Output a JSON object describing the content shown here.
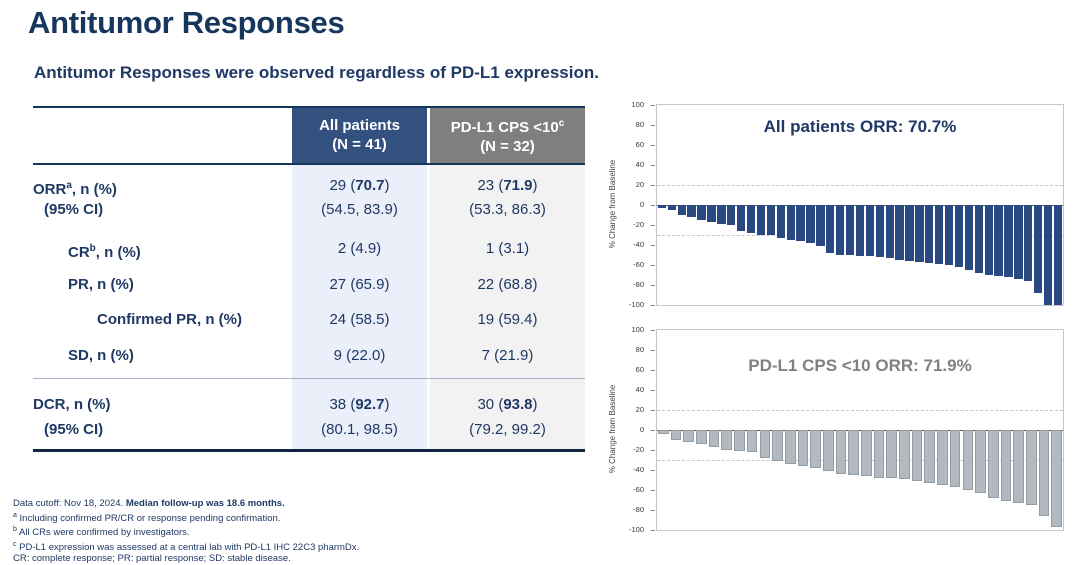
{
  "slide": {
    "title": "Antitumor Responses",
    "subtitle": "Antitumor Responses were observed regardless of PD-L1 expression."
  },
  "colors": {
    "text_navy": "#1F3864",
    "title_navy": "#17365D",
    "header_navy_bg": "#33517E",
    "header_gray_bg": "#7F7F7F",
    "column_blue_bg": "#EAEFF9",
    "column_gray_bg": "#F2F2F2",
    "bar_navy": "#2A4983",
    "bar_gray": "#B3B9C0",
    "chart_title_gray": "#808080"
  },
  "table": {
    "header": {
      "col1": {
        "line1": "All patients",
        "line2": "(N = 41)"
      },
      "col2": {
        "line1": "PD-L1 CPS <10",
        "sup": "c",
        "line2": "(N = 32)"
      }
    },
    "rows": [
      {
        "id": "orr",
        "label_pre": "ORR",
        "label_sup": "a",
        "label_post": ", n (%)",
        "sub_label": "(95% CI)",
        "cells": [
          {
            "pre": "29 (",
            "bold": "70.7",
            "post": ")",
            "sub": "(54.5, 83.9)"
          },
          {
            "pre": "23 (",
            "bold": "71.9",
            "post": ")",
            "sub": "(53.3, 86.3)"
          }
        ]
      },
      {
        "id": "cr",
        "label_pre": "CR",
        "label_sup": "b",
        "label_post": ", n (%)",
        "cells": [
          {
            "pre": "2 (4.9)"
          },
          {
            "pre": "1 (3.1)"
          }
        ]
      },
      {
        "id": "pr",
        "label_pre": "PR",
        "label_sup": "",
        "label_post": ", n (%)",
        "cells": [
          {
            "pre": "27 (65.9)"
          },
          {
            "pre": "22 (68.8)"
          }
        ]
      },
      {
        "id": "confirmed-pr",
        "label_pre": "Confirmed PR",
        "label_sup": "",
        "label_post": ", n (%)",
        "cells": [
          {
            "pre": "24 (58.5)"
          },
          {
            "pre": "19 (59.4)"
          }
        ]
      },
      {
        "id": "sd",
        "label_pre": "SD",
        "label_sup": "",
        "label_post": ", n (%)",
        "cells": [
          {
            "pre": "9 (22.0)"
          },
          {
            "pre": "7 (21.9)"
          }
        ]
      },
      {
        "id": "dcr",
        "label_pre": "DCR",
        "label_sup": "",
        "label_post": ", n (%)",
        "sub_label": "(95% CI)",
        "cells": [
          {
            "pre": "38 (",
            "bold": "92.7",
            "post": ")",
            "sub": "(80.1, 98.5)"
          },
          {
            "pre": "30 (",
            "bold": "93.8",
            "post": ")",
            "sub": "(79.2, 99.2)"
          }
        ]
      }
    ]
  },
  "footnotes": {
    "line1_pre": "Data cutoff: Nov 18, 2024. ",
    "line1_bold": "Median follow-up was 18.6 months.",
    "line2_sup": "a",
    "line2_text": " Including confirmed PR/CR or response pending confirmation.",
    "line3_sup": "b",
    "line3_text": " All CRs were confirmed by investigators.",
    "line4_sup": "c",
    "line4_text": " PD-L1 expression was assessed at a central lab with PD-L1 IHC 22C3 pharmDx.",
    "line5": "CR: complete response; PR: partial response; SD: stable disease."
  },
  "chart_data": [
    {
      "type": "bar",
      "subtype": "waterfall",
      "title": "All patients ORR: 70.7%",
      "xlabel": "",
      "ylabel": "% Change from Baseline",
      "ylim": [
        -100,
        100
      ],
      "yticks": [
        100,
        80,
        60,
        40,
        20,
        0,
        -20,
        -40,
        -60,
        -80,
        -100
      ],
      "ref_lines": [
        20,
        -30
      ],
      "grid": "dashed horizontal reference lines at +20 and -30",
      "legend": "none",
      "bar_color": "#2A4983",
      "bar_border": "",
      "n_patients": 41,
      "values": [
        -3,
        -5,
        -10,
        -12,
        -15,
        -17,
        -19,
        -20,
        -26,
        -28,
        -30,
        -30,
        -33,
        -35,
        -36,
        -38,
        -41,
        -48,
        -50,
        -50,
        -51,
        -51,
        -52,
        -53,
        -55,
        -56,
        -57,
        -58,
        -59,
        -60,
        -62,
        -65,
        -68,
        -70,
        -71,
        -72,
        -74,
        -76,
        -88,
        -100,
        -100
      ]
    },
    {
      "type": "bar",
      "subtype": "waterfall",
      "title": "PD-L1 CPS <10 ORR: 71.9%",
      "xlabel": "",
      "ylabel": "% Change from Baseline",
      "ylim": [
        -100,
        100
      ],
      "yticks": [
        100,
        80,
        60,
        40,
        20,
        0,
        -20,
        -40,
        -60,
        -80,
        -100
      ],
      "ref_lines": [
        20,
        -30
      ],
      "grid": "dashed horizontal reference lines at +20 and -30",
      "legend": "none",
      "bar_color": "#B3B9C0",
      "bar_border": "#939BA3",
      "n_patients": 32,
      "values": [
        -4,
        -10,
        -12,
        -14,
        -17,
        -20,
        -21,
        -22,
        -28,
        -31,
        -34,
        -36,
        -38,
        -41,
        -44,
        -45,
        -46,
        -48,
        -48,
        -49,
        -51,
        -53,
        -55,
        -57,
        -60,
        -63,
        -68,
        -71,
        -73,
        -75,
        -86,
        -97
      ]
    }
  ]
}
